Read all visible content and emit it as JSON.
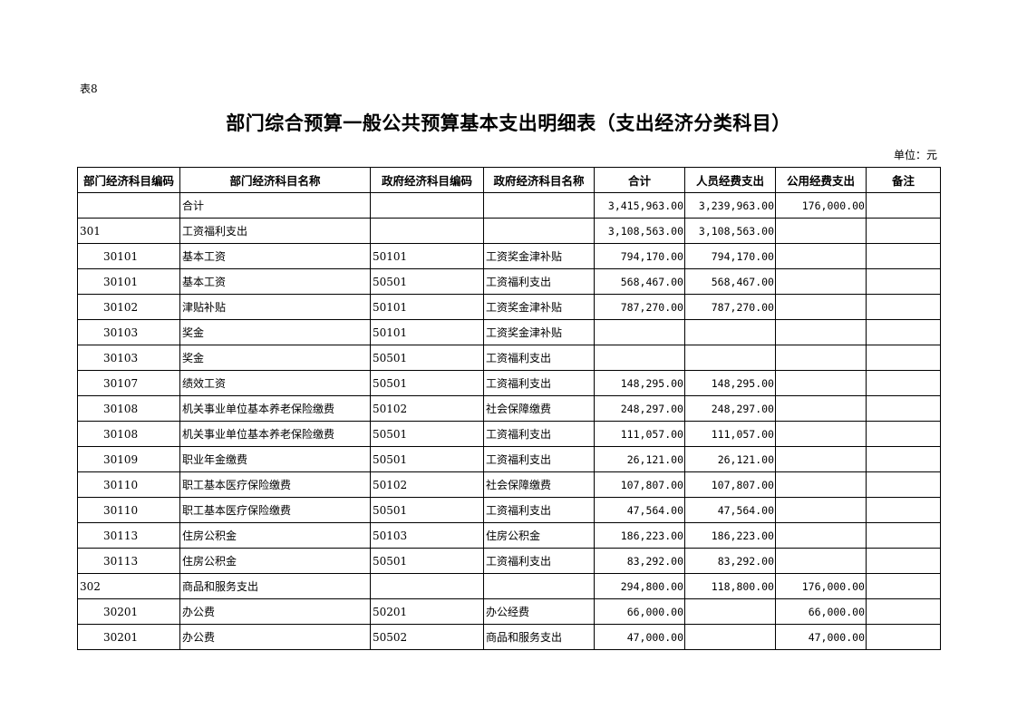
{
  "table_tag": "表8",
  "title": "部门综合预算一般公共预算基本支出明细表（支出经济分类科目）",
  "unit": "单位：元",
  "columns": [
    "部门经济科目编码",
    "部门经济科目名称",
    "政府经济科目编码",
    "政府经济科目名称",
    "合计",
    "人员经费支出",
    "公用经费支出",
    "备注"
  ],
  "rows": [
    {
      "level": 0,
      "dept_code": "",
      "dept_name": "合计",
      "gov_code": "",
      "gov_name": "",
      "total": "3,415,963.00",
      "personnel": "3,239,963.00",
      "public": "176,000.00",
      "note": ""
    },
    {
      "level": 0,
      "dept_code": "301",
      "dept_name": "工资福利支出",
      "gov_code": "",
      "gov_name": "",
      "total": "3,108,563.00",
      "personnel": "3,108,563.00",
      "public": "",
      "note": ""
    },
    {
      "level": 1,
      "dept_code": "30101",
      "dept_name": "基本工资",
      "gov_code": "50101",
      "gov_name": "工资奖金津补贴",
      "total": "794,170.00",
      "personnel": "794,170.00",
      "public": "",
      "note": ""
    },
    {
      "level": 1,
      "dept_code": "30101",
      "dept_name": "基本工资",
      "gov_code": "50501",
      "gov_name": "工资福利支出",
      "total": "568,467.00",
      "personnel": "568,467.00",
      "public": "",
      "note": ""
    },
    {
      "level": 1,
      "dept_code": "30102",
      "dept_name": "津贴补贴",
      "gov_code": "50101",
      "gov_name": "工资奖金津补贴",
      "total": "787,270.00",
      "personnel": "787,270.00",
      "public": "",
      "note": ""
    },
    {
      "level": 1,
      "dept_code": "30103",
      "dept_name": "奖金",
      "gov_code": "50101",
      "gov_name": "工资奖金津补贴",
      "total": "",
      "personnel": "",
      "public": "",
      "note": ""
    },
    {
      "level": 1,
      "dept_code": "30103",
      "dept_name": "奖金",
      "gov_code": "50501",
      "gov_name": "工资福利支出",
      "total": "",
      "personnel": "",
      "public": "",
      "note": ""
    },
    {
      "level": 1,
      "dept_code": "30107",
      "dept_name": "绩效工资",
      "gov_code": "50501",
      "gov_name": "工资福利支出",
      "total": "148,295.00",
      "personnel": "148,295.00",
      "public": "",
      "note": ""
    },
    {
      "level": 1,
      "dept_code": "30108",
      "dept_name": "机关事业单位基本养老保险缴费",
      "gov_code": "50102",
      "gov_name": "社会保障缴费",
      "total": "248,297.00",
      "personnel": "248,297.00",
      "public": "",
      "note": ""
    },
    {
      "level": 1,
      "dept_code": "30108",
      "dept_name": "机关事业单位基本养老保险缴费",
      "gov_code": "50501",
      "gov_name": "工资福利支出",
      "total": "111,057.00",
      "personnel": "111,057.00",
      "public": "",
      "note": ""
    },
    {
      "level": 1,
      "dept_code": "30109",
      "dept_name": "职业年金缴费",
      "gov_code": "50501",
      "gov_name": "工资福利支出",
      "total": "26,121.00",
      "personnel": "26,121.00",
      "public": "",
      "note": ""
    },
    {
      "level": 1,
      "dept_code": "30110",
      "dept_name": "职工基本医疗保险缴费",
      "gov_code": "50102",
      "gov_name": "社会保障缴费",
      "total": "107,807.00",
      "personnel": "107,807.00",
      "public": "",
      "note": ""
    },
    {
      "level": 1,
      "dept_code": "30110",
      "dept_name": "职工基本医疗保险缴费",
      "gov_code": "50501",
      "gov_name": "工资福利支出",
      "total": "47,564.00",
      "personnel": "47,564.00",
      "public": "",
      "note": ""
    },
    {
      "level": 1,
      "dept_code": "30113",
      "dept_name": "住房公积金",
      "gov_code": "50103",
      "gov_name": "住房公积金",
      "total": "186,223.00",
      "personnel": "186,223.00",
      "public": "",
      "note": ""
    },
    {
      "level": 1,
      "dept_code": "30113",
      "dept_name": "住房公积金",
      "gov_code": "50501",
      "gov_name": "工资福利支出",
      "total": "83,292.00",
      "personnel": "83,292.00",
      "public": "",
      "note": ""
    },
    {
      "level": 0,
      "dept_code": "302",
      "dept_name": "商品和服务支出",
      "gov_code": "",
      "gov_name": "",
      "total": "294,800.00",
      "personnel": "118,800.00",
      "public": "176,000.00",
      "note": ""
    },
    {
      "level": 1,
      "dept_code": "30201",
      "dept_name": "办公费",
      "gov_code": "50201",
      "gov_name": "办公经费",
      "total": "66,000.00",
      "personnel": "",
      "public": "66,000.00",
      "note": ""
    },
    {
      "level": 1,
      "dept_code": "30201",
      "dept_name": "办公费",
      "gov_code": "50502",
      "gov_name": "商品和服务支出",
      "total": "47,000.00",
      "personnel": "",
      "public": "47,000.00",
      "note": ""
    }
  ]
}
